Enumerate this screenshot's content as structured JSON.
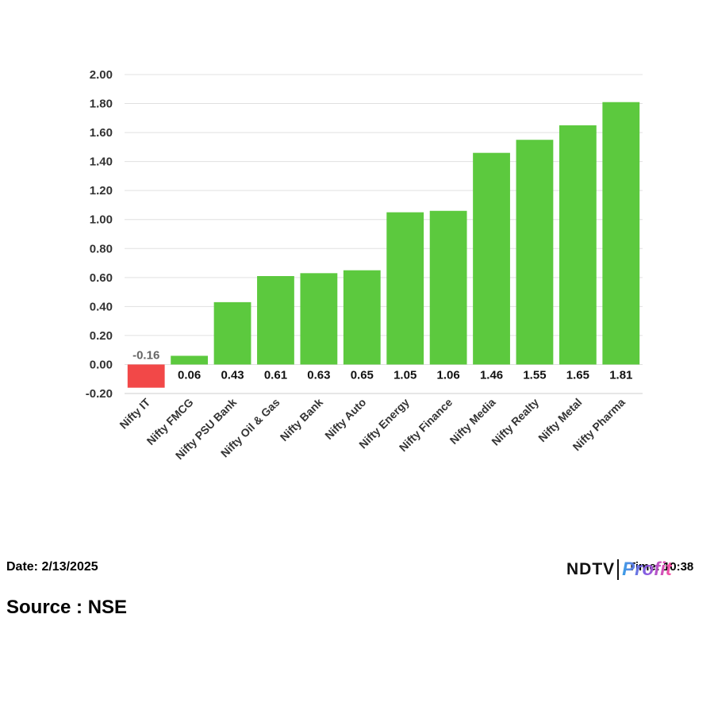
{
  "chart_data": {
    "type": "bar",
    "categories": [
      "Nifty IT",
      "Nifty FMCG",
      "Nifty PSU Bank",
      "Nifty Oil & Gas",
      "Nifty Bank",
      "Nifty Auto",
      "Nifty Energy",
      "Nifty Finance",
      "Nifty Media",
      "Nifty Realty",
      "Nifty Metal",
      "Nifty Pharma"
    ],
    "values": [
      -0.16,
      0.06,
      0.43,
      0.61,
      0.63,
      0.65,
      1.05,
      1.06,
      1.46,
      1.55,
      1.65,
      1.81
    ],
    "data_labels": [
      "-0.16",
      "0.06",
      "0.43",
      "0.61",
      "0.63",
      "0.65",
      "1.05",
      "1.06",
      "1.46",
      "1.55",
      "1.65",
      "1.81"
    ],
    "yticks": [
      "2.00",
      "1.80",
      "1.60",
      "1.40",
      "1.20",
      "1.00",
      "0.80",
      "0.60",
      "0.40",
      "0.20",
      "0.00",
      "-0.20"
    ],
    "ylim": [
      -0.2,
      2.0
    ],
    "grid": true,
    "colors": {
      "positive": "#5cc93e",
      "negative": "#f24848",
      "negative_label": "#666666",
      "positive_label": "#111111",
      "grid": "#e0e0e0"
    },
    "title": "",
    "xlabel": "",
    "ylabel": ""
  },
  "footer": {
    "date": "Date: 2/13/2025",
    "time": "Time: 10:38",
    "source": "Source : NSE"
  },
  "brand": {
    "ndtv": "NDTV",
    "profit": "Profit"
  }
}
